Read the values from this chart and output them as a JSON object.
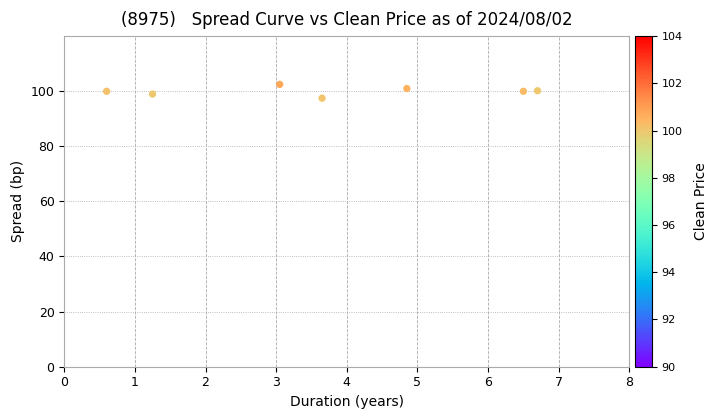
{
  "title": "(8975)   Spread Curve vs Clean Price as of 2024/08/02",
  "xlabel": "Duration (years)",
  "ylabel": "Spread (bp)",
  "colorbar_label": "Clean Price",
  "xlim": [
    0,
    8
  ],
  "ylim": [
    0,
    120
  ],
  "yticks": [
    0,
    20,
    40,
    60,
    80,
    100
  ],
  "xticks": [
    0,
    1,
    2,
    3,
    4,
    5,
    6,
    7,
    8
  ],
  "clim": [
    90,
    104
  ],
  "cticks": [
    90,
    92,
    94,
    96,
    98,
    100,
    102,
    104
  ],
  "points": [
    {
      "duration": 0.6,
      "spread": 100.0,
      "price": 100.2
    },
    {
      "duration": 1.25,
      "spread": 99.0,
      "price": 100.0
    },
    {
      "duration": 3.05,
      "spread": 102.5,
      "price": 100.8
    },
    {
      "duration": 3.65,
      "spread": 97.5,
      "price": 100.1
    },
    {
      "duration": 4.85,
      "spread": 101.0,
      "price": 100.5
    },
    {
      "duration": 6.5,
      "spread": 100.0,
      "price": 100.3
    },
    {
      "duration": 6.7,
      "spread": 100.2,
      "price": 100.0
    }
  ],
  "marker_size": 18,
  "cmap": "rainbow",
  "background_color": "#ffffff",
  "grid_color_h": "#aaaaaa",
  "grid_color_v": "#aaaaaa",
  "title_fontsize": 12,
  "axis_fontsize": 10,
  "spine_color": "#aaaaaa"
}
